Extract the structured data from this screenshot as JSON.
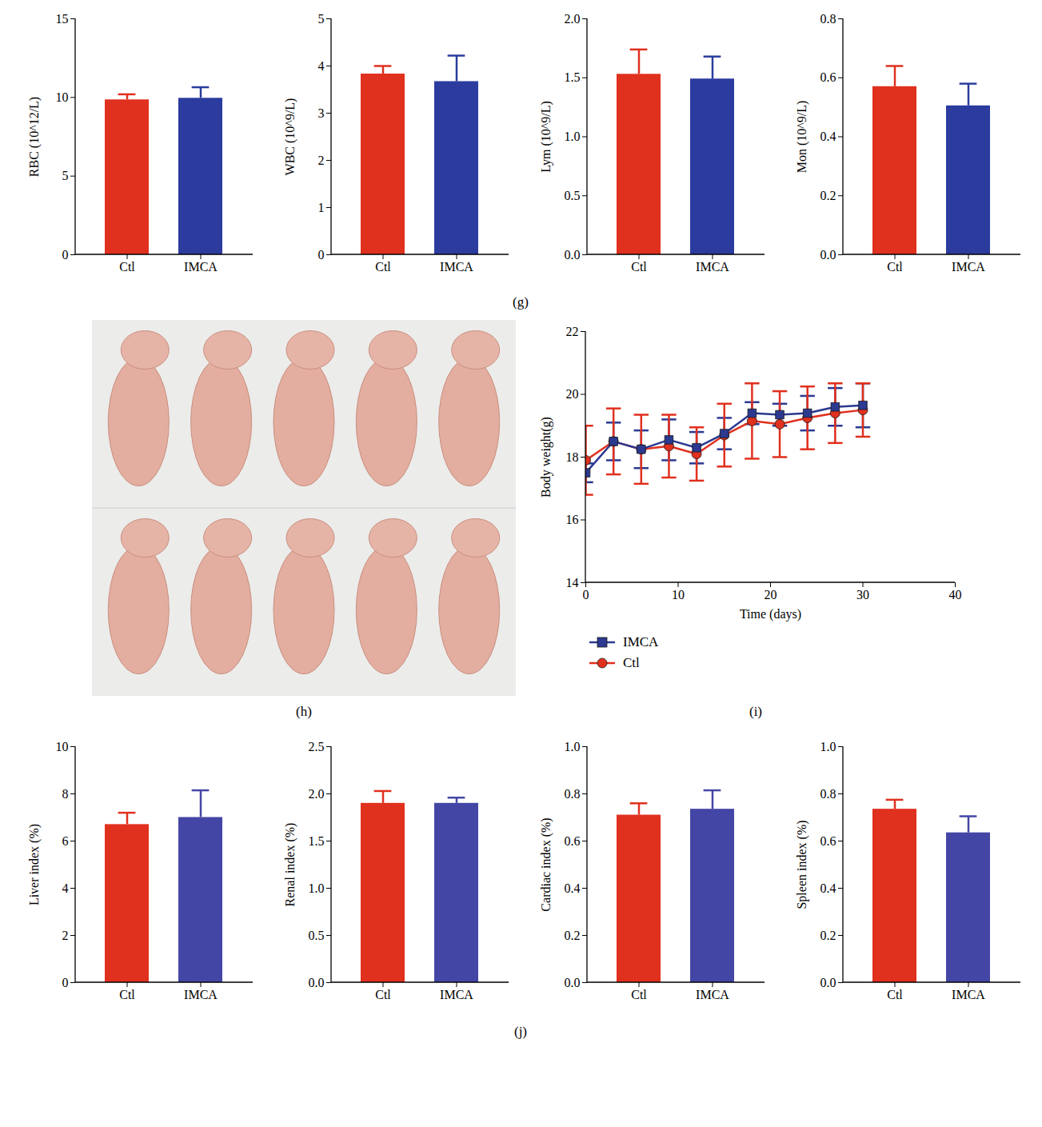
{
  "chart_data": [
    {
      "type": "bar",
      "panel": "(g)",
      "categories": [
        "Ctl",
        "IMCA"
      ],
      "values": [
        9.85,
        9.95
      ],
      "errors": [
        0.35,
        0.7
      ],
      "colors": [
        "#e0301e",
        "#2b3c9e"
      ],
      "ylabel": "RBC (10^12/L)",
      "ylim": [
        0,
        15
      ],
      "yticks": [
        0,
        5,
        10,
        15
      ]
    },
    {
      "type": "bar",
      "panel": "(g)",
      "categories": [
        "Ctl",
        "IMCA"
      ],
      "values": [
        3.83,
        3.67
      ],
      "errors": [
        0.17,
        0.55
      ],
      "colors": [
        "#e0301e",
        "#2b3c9e"
      ],
      "ylabel": "WBC (10^9/L)",
      "ylim": [
        0,
        5
      ],
      "yticks": [
        0,
        1,
        2,
        3,
        4,
        5
      ]
    },
    {
      "type": "bar",
      "panel": "(g)",
      "categories": [
        "Ctl",
        "IMCA"
      ],
      "values": [
        1.53,
        1.49
      ],
      "errors": [
        0.21,
        0.19
      ],
      "colors": [
        "#e0301e",
        "#2b3c9e"
      ],
      "ylabel": "Lym (10^9/L)",
      "ylim": [
        0,
        2
      ],
      "yticks": [
        {
          "value": 0,
          "label": "0.0"
        },
        0.5,
        {
          "value": 1,
          "label": "1.0"
        },
        1.5,
        {
          "value": 2,
          "label": "2.0"
        }
      ]
    },
    {
      "type": "bar",
      "panel": "(g)",
      "categories": [
        "Ctl",
        "IMCA"
      ],
      "values": [
        0.57,
        0.505
      ],
      "errors": [
        0.07,
        0.075
      ],
      "colors": [
        "#e0301e",
        "#2b3c9e"
      ],
      "ylabel": "Mon (10^9/L)",
      "ylim": [
        0,
        0.8
      ],
      "yticks": [
        {
          "value": 0,
          "label": "0.0"
        },
        0.2,
        0.4,
        0.6,
        0.8
      ]
    },
    {
      "type": "photo",
      "panel": "(h)"
    },
    {
      "type": "line",
      "panel": "(i)",
      "x": [
        0,
        3,
        6,
        9,
        12,
        15,
        18,
        21,
        24,
        27,
        30
      ],
      "series": [
        {
          "name": "IMCA",
          "color": "#2b3990",
          "marker": "square",
          "values": [
            17.5,
            18.5,
            18.25,
            18.55,
            18.3,
            18.75,
            19.4,
            19.35,
            19.4,
            19.6,
            19.65
          ],
          "errors": [
            0.3,
            0.6,
            0.6,
            0.65,
            0.5,
            0.5,
            0.35,
            0.35,
            0.55,
            0.6,
            0.7
          ]
        },
        {
          "name": "Ctl",
          "color": "#e0301e",
          "marker": "circle",
          "values": [
            17.9,
            18.5,
            18.25,
            18.35,
            18.1,
            18.7,
            19.15,
            19.05,
            19.25,
            19.4,
            19.5
          ],
          "errors": [
            1.1,
            1.05,
            1.1,
            1.0,
            0.85,
            1.0,
            1.2,
            1.05,
            1.0,
            0.95,
            0.85
          ]
        }
      ],
      "xlabel": "Time (days)",
      "ylabel": "Body weight(g)",
      "xlim": [
        0,
        40
      ],
      "xticks": [
        0,
        10,
        20,
        30,
        40
      ],
      "ylim": [
        14,
        22
      ],
      "yticks": [
        14,
        16,
        18,
        20,
        22
      ],
      "legend": "bottom"
    },
    {
      "type": "bar",
      "panel": "(j)",
      "categories": [
        "Ctl",
        "IMCA"
      ],
      "values": [
        6.7,
        7.0
      ],
      "errors": [
        0.5,
        1.15
      ],
      "colors": [
        "#e0301e",
        "#4446a6"
      ],
      "ylabel": "Liver index (%)",
      "ylim": [
        0,
        10
      ],
      "yticks": [
        0,
        2,
        4,
        6,
        8,
        10
      ]
    },
    {
      "type": "bar",
      "panel": "(j)",
      "categories": [
        "Ctl",
        "IMCA"
      ],
      "values": [
        1.9,
        1.9
      ],
      "errors": [
        0.13,
        0.06
      ],
      "colors": [
        "#e0301e",
        "#4446a6"
      ],
      "ylabel": "Renal index (%)",
      "ylim": [
        0,
        2.5
      ],
      "yticks": [
        {
          "value": 0,
          "label": "0.0"
        },
        0.5,
        {
          "value": 1,
          "label": "1.0"
        },
        1.5,
        {
          "value": 2,
          "label": "2.0"
        },
        2.5
      ]
    },
    {
      "type": "bar",
      "panel": "(j)",
      "categories": [
        "Ctl",
        "IMCA"
      ],
      "values": [
        0.71,
        0.735
      ],
      "errors": [
        0.05,
        0.08
      ],
      "colors": [
        "#e0301e",
        "#4446a6"
      ],
      "ylabel": "Cardiac index (%)",
      "ylim": [
        0,
        1
      ],
      "yticks": [
        {
          "value": 0,
          "label": "0.0"
        },
        0.2,
        0.4,
        0.6,
        0.8,
        {
          "value": 1,
          "label": "1.0"
        }
      ]
    },
    {
      "type": "bar",
      "panel": "(j)",
      "categories": [
        "Ctl",
        "IMCA"
      ],
      "values": [
        0.735,
        0.635
      ],
      "errors": [
        0.04,
        0.07
      ],
      "colors": [
        "#e0301e",
        "#4446a6"
      ],
      "ylabel": "Spleen index (%)",
      "ylim": [
        0,
        1
      ],
      "yticks": [
        {
          "value": 0,
          "label": "0.0"
        },
        0.2,
        0.4,
        0.6,
        0.8,
        {
          "value": 1,
          "label": "1.0"
        }
      ]
    }
  ]
}
